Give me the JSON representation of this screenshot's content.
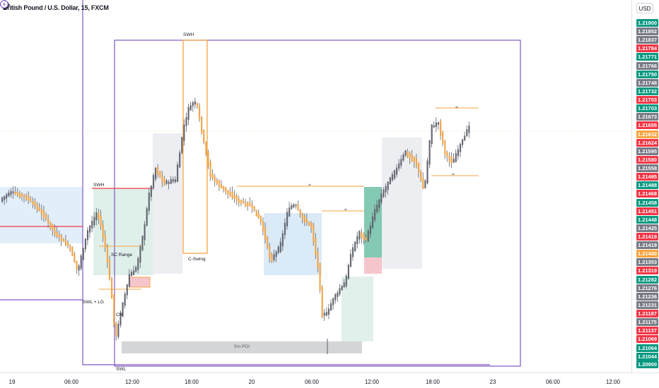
{
  "symbol": {
    "title": "British Pound / U.S. Dollar, 15, FXCM"
  },
  "currency": "USD",
  "price_labels": [
    {
      "text": "1.21900",
      "color": "#089981"
    },
    {
      "text": "1.21852",
      "color": "#787b86"
    },
    {
      "text": "1.21837",
      "color": "#787b86"
    },
    {
      "text": "1.21784",
      "color": "#f23645"
    },
    {
      "text": "1.21771",
      "color": "#089981"
    },
    {
      "text": "1.21766",
      "color": "#787b86"
    },
    {
      "text": "1.21750",
      "color": "#089981"
    },
    {
      "text": "1.21748",
      "color": "#787b86"
    },
    {
      "text": "1.21732",
      "color": "#089981"
    },
    {
      "text": "1.21703",
      "color": "#f23645"
    },
    {
      "text": "1.21703",
      "color": "#089981"
    },
    {
      "text": "1.21673",
      "color": "#787b86"
    },
    {
      "text": "1.21655",
      "color": "#f23645"
    },
    {
      "text": "1.21632",
      "color": "#f7a440"
    },
    {
      "text": "1.21624",
      "color": "#f23645"
    },
    {
      "text": "1.21595",
      "color": "#787b86"
    },
    {
      "text": "1.21580",
      "color": "#f23645"
    },
    {
      "text": "1.21558",
      "color": "#787b86"
    },
    {
      "text": "1.21495",
      "color": "#f23645"
    },
    {
      "text": "1.21488",
      "color": "#089981"
    },
    {
      "text": "1.21468",
      "color": "#f23645"
    },
    {
      "text": "1.21458",
      "color": "#089981"
    },
    {
      "text": "1.21451",
      "color": "#f23645"
    },
    {
      "text": "1.21448",
      "color": "#089981"
    },
    {
      "text": "1.21425",
      "color": "#787b86"
    },
    {
      "text": "1.21419",
      "color": "#f23645"
    },
    {
      "text": "1.21419",
      "color": "#787b86"
    },
    {
      "text": "1.21400",
      "color": "#f7a440"
    },
    {
      "text": "1.21353",
      "color": "#787b86"
    },
    {
      "text": "1.21319",
      "color": "#f23645"
    },
    {
      "text": "1.21282",
      "color": "#089981"
    },
    {
      "text": "1.21276",
      "color": "#787b86"
    },
    {
      "text": "1.21236",
      "color": "#787b86"
    },
    {
      "text": "1.21231",
      "color": "#787b86"
    },
    {
      "text": "1.21187",
      "color": "#f23645"
    },
    {
      "text": "1.21175",
      "color": "#787b86"
    },
    {
      "text": "1.21137",
      "color": "#f23645"
    },
    {
      "text": "1.21069",
      "color": "#f23645"
    },
    {
      "text": "1.21064",
      "color": "#089981"
    },
    {
      "text": "1.21044",
      "color": "#089981"
    },
    {
      "text": "1.20900",
      "color": "#089981"
    }
  ],
  "time_labels": [
    "19",
    "06:00",
    "12:00",
    "18:00",
    "20",
    "06:00",
    "12:00",
    "18:00",
    "23",
    "06:00",
    "12:00"
  ],
  "annotations": {
    "swh_top": "SWH",
    "swh_left": "SWH",
    "sc_range": "SC Range",
    "swl_lg": "SWL + LG",
    "choch": "CH",
    "c_swing": "C-Swing",
    "poi": "5m POI",
    "swl": "SWL",
    "approx_1": "≈",
    "approx_2": "≈",
    "approx_3": "≈",
    "approx_4": "≈"
  },
  "icons": {
    "crosshair": "target-icon",
    "replay": "bolt-icon"
  },
  "colors": {
    "bull": "#089981",
    "bear": "#f23645",
    "box": "#7e57c2",
    "orange": "#f7a440"
  }
}
